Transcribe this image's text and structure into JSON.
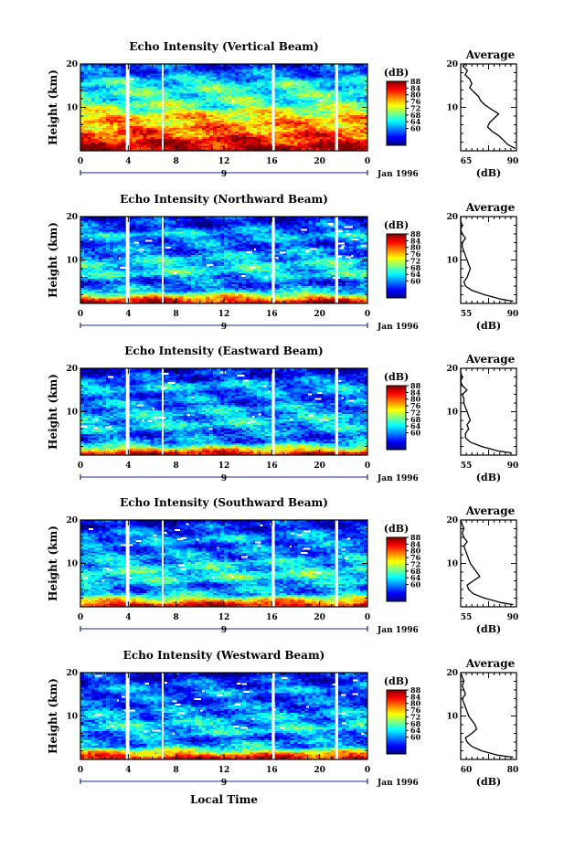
{
  "figure": {
    "x_axis_title": "Local Time"
  },
  "chart_data": [
    {
      "type": "heatmap",
      "id": "vertical",
      "title": "Echo Intensity (Vertical Beam)",
      "ylabel": "Height (km)",
      "ylim": [
        0,
        20
      ],
      "y_ticks": [
        "20",
        "10"
      ],
      "xlim": [
        0,
        24
      ],
      "x_ticks": [
        "0",
        "4",
        "8",
        "12",
        "16",
        "20",
        "0"
      ],
      "x_minor_label": "9",
      "date_label": "Jan 1996",
      "data_gaps_hours": [
        [
          3.8,
          4.1
        ],
        [
          6.8,
          6.95
        ],
        [
          16.0,
          16.25
        ],
        [
          21.3,
          21.55
        ]
      ],
      "colorbar": {
        "label": "(dB)",
        "range": [
          50,
          88
        ],
        "ticks": [
          "88",
          "84",
          "80",
          "76",
          "72",
          "68",
          "64",
          "60"
        ]
      },
      "intensity_profile_db_by_height_km": [
        [
          0.5,
          86
        ],
        [
          2,
          84
        ],
        [
          4,
          80
        ],
        [
          6,
          77
        ],
        [
          8,
          75
        ],
        [
          10,
          69
        ],
        [
          12,
          66
        ],
        [
          14,
          66
        ],
        [
          16,
          64
        ],
        [
          18,
          58
        ],
        [
          20,
          56
        ]
      ],
      "average_profile": {
        "title": "Average",
        "xlabel": "(dB)",
        "xlim": [
          65,
          90
        ],
        "x_ticks": [
          "65",
          "90"
        ],
        "ylim": [
          0,
          20
        ],
        "y_ticks": [
          "20",
          "10"
        ],
        "x": [
          89.5,
          86,
          84,
          82,
          79,
          77,
          78,
          80,
          82,
          79,
          76,
          74,
          73,
          71,
          69,
          70,
          69,
          67,
          68,
          66,
          67
        ],
        "y": [
          0.5,
          1.5,
          2.5,
          3.5,
          4.5,
          5.5,
          6.5,
          7.5,
          8.5,
          9.5,
          10.5,
          11.5,
          12.5,
          13.5,
          14.5,
          15.5,
          16.5,
          17.5,
          18.5,
          19.5,
          20
        ]
      }
    },
    {
      "type": "heatmap",
      "id": "northward",
      "title": "Echo Intensity (Northward Beam)",
      "ylabel": "Height (km)",
      "ylim": [
        0,
        20
      ],
      "y_ticks": [
        "20",
        "10"
      ],
      "xlim": [
        0,
        24
      ],
      "x_ticks": [
        "0",
        "4",
        "8",
        "12",
        "16",
        "20",
        "0"
      ],
      "x_minor_label": "9",
      "date_label": "Jan 1996",
      "data_gaps_hours": [
        [
          3.8,
          4.1
        ],
        [
          6.8,
          6.95
        ],
        [
          16.0,
          16.25
        ],
        [
          21.3,
          21.55
        ]
      ],
      "colorbar": {
        "label": "(dB)",
        "range": [
          50,
          88
        ],
        "ticks": [
          "88",
          "84",
          "80",
          "76",
          "72",
          "68",
          "64",
          "60"
        ]
      },
      "intensity_profile_db_by_height_km": [
        [
          0.5,
          84
        ],
        [
          1.5,
          76
        ],
        [
          3,
          62
        ],
        [
          5,
          57
        ],
        [
          7,
          64
        ],
        [
          10,
          63
        ],
        [
          12,
          59
        ],
        [
          14,
          58
        ],
        [
          16,
          62
        ],
        [
          18,
          56
        ],
        [
          20,
          54
        ]
      ],
      "average_profile": {
        "title": "Average",
        "xlabel": "(dB)",
        "xlim": [
          55,
          90
        ],
        "x_ticks": [
          "55",
          "90"
        ],
        "ylim": [
          0,
          20
        ],
        "y_ticks": [
          "20",
          "10"
        ],
        "x": [
          88,
          80,
          70,
          62,
          58,
          57,
          59,
          60,
          61,
          60,
          59,
          58,
          57,
          56,
          56,
          58,
          56,
          55,
          56,
          55,
          55
        ],
        "y": [
          0.5,
          1,
          2,
          3,
          4,
          5,
          6,
          7,
          8,
          9,
          10,
          11,
          12,
          13,
          14,
          15,
          16,
          17,
          18,
          19,
          20
        ]
      }
    },
    {
      "type": "heatmap",
      "id": "eastward",
      "title": "Echo Intensity (Eastward Beam)",
      "ylabel": "Height (km)",
      "ylim": [
        0,
        20
      ],
      "y_ticks": [
        "20",
        "10"
      ],
      "xlim": [
        0,
        24
      ],
      "x_ticks": [
        "0",
        "4",
        "8",
        "12",
        "16",
        "20",
        "0"
      ],
      "x_minor_label": "9",
      "date_label": "Jan 1996",
      "data_gaps_hours": [
        [
          3.8,
          4.1
        ],
        [
          6.8,
          6.95
        ],
        [
          16.0,
          16.25
        ],
        [
          21.3,
          21.55
        ]
      ],
      "colorbar": {
        "label": "(dB)",
        "range": [
          50,
          88
        ],
        "ticks": [
          "88",
          "84",
          "80",
          "76",
          "72",
          "68",
          "64",
          "60"
        ]
      },
      "intensity_profile_db_by_height_km": [
        [
          0.5,
          84
        ],
        [
          1.5,
          74
        ],
        [
          3,
          60
        ],
        [
          5,
          58
        ],
        [
          7,
          63
        ],
        [
          10,
          62
        ],
        [
          12,
          59
        ],
        [
          14,
          58
        ],
        [
          16,
          62
        ],
        [
          18,
          56
        ],
        [
          20,
          54
        ]
      ],
      "average_profile": {
        "title": "Average",
        "xlabel": "(dB)",
        "xlim": [
          55,
          90
        ],
        "x_ticks": [
          "55",
          "90"
        ],
        "ylim": [
          0,
          20
        ],
        "y_ticks": [
          "20",
          "10"
        ],
        "x": [
          87,
          78,
          68,
          61,
          58,
          58,
          60,
          59,
          61,
          60,
          59,
          58,
          57,
          57,
          56,
          59,
          56,
          55,
          56,
          55,
          55
        ],
        "y": [
          0.5,
          1,
          2,
          3,
          4,
          5,
          6,
          7,
          8,
          9,
          10,
          11,
          12,
          13,
          14,
          15,
          16,
          17,
          18,
          19,
          20
        ]
      }
    },
    {
      "type": "heatmap",
      "id": "southward",
      "title": "Echo Intensity (Southward Beam)",
      "ylabel": "Height (km)",
      "ylim": [
        0,
        20
      ],
      "y_ticks": [
        "20",
        "10"
      ],
      "xlim": [
        0,
        24
      ],
      "x_ticks": [
        "0",
        "4",
        "8",
        "12",
        "16",
        "20",
        "0"
      ],
      "x_minor_label": "9",
      "date_label": "Jan 1996",
      "data_gaps_hours": [
        [
          3.8,
          4.1
        ],
        [
          6.8,
          6.95
        ],
        [
          16.0,
          16.25
        ],
        [
          21.3,
          21.55
        ]
      ],
      "colorbar": {
        "label": "(dB)",
        "range": [
          50,
          88
        ],
        "ticks": [
          "88",
          "84",
          "80",
          "76",
          "72",
          "68",
          "64",
          "60"
        ]
      },
      "intensity_profile_db_by_height_km": [
        [
          0.5,
          84
        ],
        [
          1.5,
          76
        ],
        [
          3,
          62
        ],
        [
          5,
          59
        ],
        [
          7,
          66
        ],
        [
          9,
          64
        ],
        [
          12,
          60
        ],
        [
          14,
          58
        ],
        [
          16,
          61
        ],
        [
          18,
          56
        ],
        [
          20,
          54
        ]
      ],
      "average_profile": {
        "title": "Average",
        "xlabel": "(dB)",
        "xlim": [
          55,
          90
        ],
        "x_ticks": [
          "55",
          "90"
        ],
        "ylim": [
          0,
          20
        ],
        "y_ticks": [
          "20",
          "10"
        ],
        "x": [
          88,
          80,
          70,
          63,
          60,
          59,
          63,
          67,
          65,
          63,
          61,
          60,
          59,
          58,
          57,
          59,
          57,
          56,
          57,
          56,
          55
        ],
        "y": [
          0.5,
          1,
          2,
          3,
          4,
          5,
          6,
          7,
          8,
          9,
          10,
          11,
          12,
          13,
          14,
          15,
          16,
          17,
          18,
          19,
          20
        ]
      }
    },
    {
      "type": "heatmap",
      "id": "westward",
      "title": "Echo Intensity (Westward Beam)",
      "ylabel": "Height (km)",
      "ylim": [
        0,
        20
      ],
      "y_ticks": [
        "20",
        "10"
      ],
      "xlim": [
        0,
        24
      ],
      "x_ticks": [
        "0",
        "4",
        "8",
        "12",
        "16",
        "20",
        "0"
      ],
      "x_minor_label": "9",
      "date_label": "Jan 1996",
      "data_gaps_hours": [
        [
          3.8,
          4.1
        ],
        [
          6.8,
          6.95
        ],
        [
          16.0,
          16.25
        ],
        [
          21.3,
          21.55
        ]
      ],
      "colorbar": {
        "label": "(dB)",
        "range": [
          50,
          88
        ],
        "ticks": [
          "88",
          "84",
          "80",
          "76",
          "72",
          "68",
          "64",
          "60"
        ]
      },
      "intensity_profile_db_by_height_km": [
        [
          0.5,
          84
        ],
        [
          1.5,
          76
        ],
        [
          3,
          62
        ],
        [
          5,
          58
        ],
        [
          7,
          64
        ],
        [
          9,
          62
        ],
        [
          12,
          59
        ],
        [
          14,
          57
        ],
        [
          16,
          60
        ],
        [
          18,
          56
        ],
        [
          20,
          54
        ]
      ],
      "average_profile": {
        "title": "Average",
        "xlabel": "(dB)",
        "xlim": [
          55,
          90
        ],
        "x_ticks": [
          "60",
          "80"
        ],
        "ylim": [
          0,
          20
        ],
        "y_ticks": [
          "20",
          "10"
        ],
        "x": [
          88,
          78,
          68,
          62,
          59,
          58,
          62,
          65,
          64,
          62,
          60,
          59,
          58,
          57,
          56,
          58,
          57,
          56,
          57,
          56,
          55
        ],
        "y": [
          0.5,
          1,
          2,
          3,
          4,
          5,
          6,
          7,
          8,
          9,
          10,
          11,
          12,
          13,
          14,
          15,
          16,
          17,
          18,
          19,
          20
        ]
      }
    }
  ]
}
